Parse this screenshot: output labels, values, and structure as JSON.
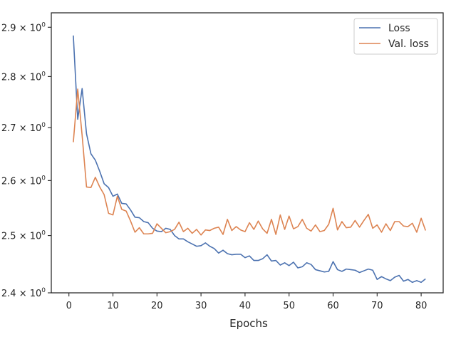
{
  "chart_data": {
    "type": "line",
    "title": "",
    "xlabel": "Epochs",
    "ylabel": "",
    "yscale": "log",
    "xlim": [
      -4,
      85
    ],
    "ylim": [
      2.4,
      2.93
    ],
    "grid": false,
    "legend_position": "top-right",
    "x_ticks": [
      {
        "v": 0,
        "label": "0"
      },
      {
        "v": 10,
        "label": "10"
      },
      {
        "v": 20,
        "label": "20"
      },
      {
        "v": 30,
        "label": "30"
      },
      {
        "v": 40,
        "label": "40"
      },
      {
        "v": 50,
        "label": "50"
      },
      {
        "v": 60,
        "label": "60"
      },
      {
        "v": 70,
        "label": "70"
      },
      {
        "v": 80,
        "label": "80"
      }
    ],
    "y_ticks": [
      {
        "v": 2.4,
        "base": "2.4",
        "exp": "0"
      },
      {
        "v": 2.5,
        "base": "2.5",
        "exp": "0"
      },
      {
        "v": 2.6,
        "base": "2.6",
        "exp": "0"
      },
      {
        "v": 2.7,
        "base": "2.7",
        "exp": "0"
      },
      {
        "v": 2.8,
        "base": "2.8",
        "exp": "0"
      },
      {
        "v": 2.9,
        "base": "2.9",
        "exp": "0"
      }
    ],
    "x": [
      1,
      2,
      3,
      4,
      5,
      6,
      7,
      8,
      9,
      10,
      11,
      12,
      13,
      14,
      15,
      16,
      17,
      18,
      19,
      20,
      21,
      22,
      23,
      24,
      25,
      26,
      27,
      28,
      29,
      30,
      31,
      32,
      33,
      34,
      35,
      36,
      37,
      38,
      39,
      40,
      41,
      42,
      43,
      44,
      45,
      46,
      47,
      48,
      49,
      50,
      51,
      52,
      53,
      54,
      55,
      56,
      57,
      58,
      59,
      60,
      61,
      62,
      63,
      64,
      65,
      66,
      67,
      68,
      69,
      70,
      71,
      72,
      73,
      74,
      75,
      76,
      77,
      78,
      79,
      80,
      81
    ],
    "series": [
      {
        "name": "Loss",
        "color": "#4c72b0",
        "values": [
          2.883,
          2.716,
          2.776,
          2.688,
          2.65,
          2.638,
          2.617,
          2.594,
          2.587,
          2.571,
          2.575,
          2.558,
          2.557,
          2.546,
          2.533,
          2.532,
          2.525,
          2.523,
          2.513,
          2.508,
          2.507,
          2.513,
          2.511,
          2.5,
          2.494,
          2.494,
          2.489,
          2.485,
          2.481,
          2.482,
          2.487,
          2.481,
          2.477,
          2.469,
          2.474,
          2.468,
          2.466,
          2.467,
          2.467,
          2.461,
          2.464,
          2.456,
          2.456,
          2.459,
          2.466,
          2.455,
          2.456,
          2.448,
          2.452,
          2.447,
          2.453,
          2.443,
          2.445,
          2.452,
          2.449,
          2.44,
          2.438,
          2.436,
          2.437,
          2.454,
          2.44,
          2.437,
          2.441,
          2.44,
          2.439,
          2.435,
          2.438,
          2.441,
          2.439,
          2.423,
          2.428,
          2.424,
          2.421,
          2.427,
          2.43,
          2.42,
          2.423,
          2.418,
          2.421,
          2.418,
          2.424
        ]
      },
      {
        "name": "Val. loss",
        "color": "#dd8452",
        "values": [
          2.672,
          2.775,
          2.685,
          2.588,
          2.587,
          2.606,
          2.588,
          2.574,
          2.54,
          2.537,
          2.571,
          2.547,
          2.544,
          2.526,
          2.506,
          2.514,
          2.503,
          2.503,
          2.504,
          2.521,
          2.513,
          2.505,
          2.507,
          2.511,
          2.524,
          2.507,
          2.513,
          2.504,
          2.511,
          2.501,
          2.51,
          2.509,
          2.513,
          2.515,
          2.502,
          2.529,
          2.509,
          2.516,
          2.51,
          2.507,
          2.523,
          2.511,
          2.526,
          2.512,
          2.504,
          2.529,
          2.502,
          2.537,
          2.511,
          2.535,
          2.512,
          2.516,
          2.529,
          2.513,
          2.508,
          2.519,
          2.507,
          2.509,
          2.52,
          2.549,
          2.51,
          2.525,
          2.514,
          2.515,
          2.527,
          2.515,
          2.527,
          2.538,
          2.513,
          2.519,
          2.506,
          2.521,
          2.509,
          2.525,
          2.525,
          2.517,
          2.516,
          2.522,
          2.506,
          2.531,
          2.509
        ]
      }
    ]
  }
}
